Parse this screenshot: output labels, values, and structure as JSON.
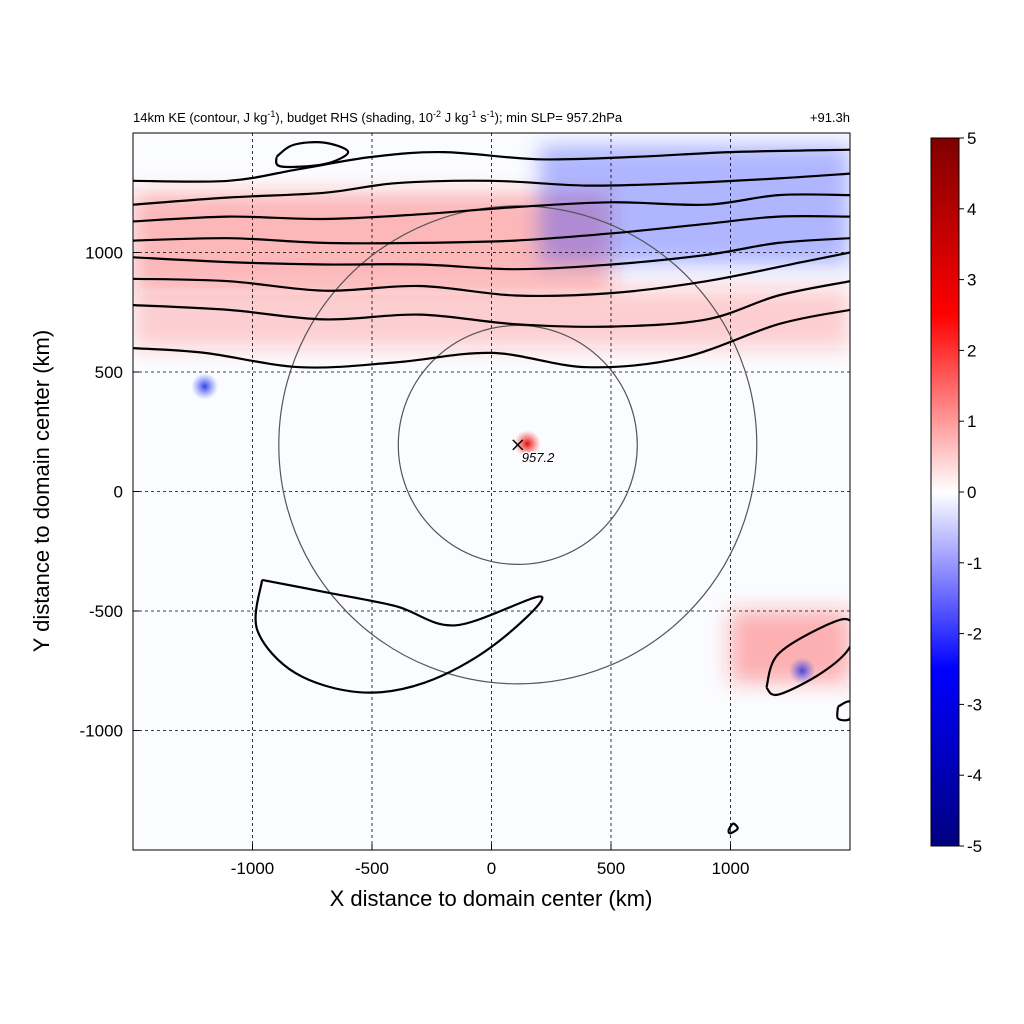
{
  "chart_data": {
    "type": "heatmap",
    "title": {
      "pre": "14km KE (contour, J kg",
      "sup1": "-1",
      "mid1": "), budget RHS (shading, 10",
      "sup2": "-2",
      "mid2": " J kg",
      "sup3": "-1",
      "mid3": " s",
      "sup4": "-1",
      "post": "); min SLP= 957.2hPa"
    },
    "time_label": "+91.3h",
    "xlabel": "X distance to domain center (km)",
    "ylabel": "Y distance to domain center (km)",
    "xlim": [
      -1500,
      1500
    ],
    "ylim": [
      -1500,
      1500
    ],
    "x_ticks": [
      -1000,
      -500,
      0,
      500,
      1000
    ],
    "y_ticks": [
      -1000,
      -500,
      0,
      500,
      1000
    ],
    "grid": true,
    "colorbar": {
      "min": -5,
      "max": 5,
      "ticks": [
        5,
        4,
        3,
        2,
        1,
        0,
        -1,
        -2,
        -3,
        -4,
        -5
      ],
      "colors": [
        "#00007f",
        "#0000ff",
        "#ffffff",
        "#ff0000",
        "#7f0000"
      ]
    },
    "storm_center": {
      "x": 110,
      "y": 195,
      "label": "957.2"
    },
    "range_circles_km": [
      500,
      1000
    ],
    "shading_regions": [
      {
        "shape": "band",
        "sign": "positive",
        "x": [
          -1500,
          500
        ],
        "y": [
          850,
          1250
        ],
        "intensity": 0.55
      },
      {
        "shape": "band",
        "sign": "negative",
        "x": [
          200,
          1500
        ],
        "y": [
          950,
          1450
        ],
        "intensity": 0.6
      },
      {
        "shape": "band",
        "sign": "positive",
        "x": [
          -1500,
          1500
        ],
        "y": [
          600,
          850
        ],
        "intensity": 0.35
      },
      {
        "shape": "blob",
        "sign": "positive",
        "x": 150,
        "y": 200,
        "intensity": 0.95
      },
      {
        "shape": "blob",
        "sign": "negative",
        "x": -1200,
        "y": 440,
        "intensity": 0.8
      },
      {
        "shape": "band",
        "sign": "positive",
        "x": [
          1000,
          1500
        ],
        "y": [
          -800,
          -500
        ],
        "intensity": 0.6
      },
      {
        "shape": "blob",
        "sign": "negative",
        "x": 1300,
        "y": -750,
        "intensity": 0.7
      }
    ],
    "ke_contours": [
      [
        [
          -1500,
          600
        ],
        [
          -1200,
          580
        ],
        [
          -800,
          520
        ],
        [
          -400,
          540
        ],
        [
          0,
          580
        ],
        [
          400,
          520
        ],
        [
          800,
          560
        ],
        [
          1200,
          700
        ],
        [
          1500,
          760
        ]
      ],
      [
        [
          -1500,
          780
        ],
        [
          -1100,
          760
        ],
        [
          -700,
          720
        ],
        [
          -300,
          740
        ],
        [
          100,
          700
        ],
        [
          500,
          690
        ],
        [
          900,
          720
        ],
        [
          1200,
          820
        ],
        [
          1500,
          880
        ]
      ],
      [
        [
          -1500,
          890
        ],
        [
          -1100,
          880
        ],
        [
          -700,
          840
        ],
        [
          -300,
          860
        ],
        [
          100,
          820
        ],
        [
          500,
          830
        ],
        [
          900,
          880
        ],
        [
          1300,
          960
        ],
        [
          1500,
          1000
        ]
      ],
      [
        [
          -1500,
          980
        ],
        [
          -1100,
          960
        ],
        [
          -700,
          950
        ],
        [
          -300,
          950
        ],
        [
          100,
          930
        ],
        [
          500,
          950
        ],
        [
          900,
          990
        ],
        [
          1200,
          1040
        ],
        [
          1500,
          1060
        ]
      ],
      [
        [
          -1500,
          1050
        ],
        [
          -1100,
          1060
        ],
        [
          -700,
          1040
        ],
        [
          -300,
          1040
        ],
        [
          100,
          1050
        ],
        [
          500,
          1080
        ],
        [
          900,
          1120
        ],
        [
          1200,
          1150
        ],
        [
          1500,
          1150
        ]
      ],
      [
        [
          -1500,
          1130
        ],
        [
          -1100,
          1150
        ],
        [
          -700,
          1140
        ],
        [
          -300,
          1160
        ],
        [
          100,
          1190
        ],
        [
          500,
          1210
        ],
        [
          900,
          1200
        ],
        [
          1200,
          1240
        ],
        [
          1500,
          1240
        ]
      ],
      [
        [
          -1500,
          1200
        ],
        [
          -1100,
          1230
        ],
        [
          -700,
          1250
        ],
        [
          -400,
          1290
        ],
        [
          0,
          1300
        ],
        [
          400,
          1280
        ],
        [
          800,
          1290
        ],
        [
          1200,
          1310
        ],
        [
          1500,
          1330
        ]
      ],
      [
        [
          -1500,
          1300
        ],
        [
          -1100,
          1300
        ],
        [
          -800,
          1350
        ],
        [
          -500,
          1400
        ],
        [
          -200,
          1420
        ],
        [
          200,
          1390
        ],
        [
          600,
          1400
        ],
        [
          1000,
          1420
        ],
        [
          1500,
          1430
        ]
      ],
      [
        [
          -900,
          1400
        ],
        [
          -830,
          1450
        ],
        [
          -700,
          1460
        ],
        [
          -600,
          1420
        ],
        [
          -700,
          1370
        ],
        [
          -880,
          1360
        ],
        [
          -900,
          1400
        ]
      ],
      [
        [
          -960,
          -370
        ],
        [
          -700,
          -420
        ],
        [
          -400,
          -480
        ],
        [
          -150,
          -560
        ],
        [
          210,
          -440
        ],
        [
          0,
          -650
        ],
        [
          -280,
          -800
        ],
        [
          -550,
          -840
        ],
        [
          -820,
          -760
        ],
        [
          -980,
          -580
        ],
        [
          -960,
          -370
        ]
      ],
      [
        [
          1150,
          -820
        ],
        [
          1200,
          -680
        ],
        [
          1400,
          -560
        ],
        [
          1500,
          -540
        ],
        [
          1500,
          -650
        ],
        [
          1380,
          -760
        ],
        [
          1200,
          -850
        ],
        [
          1150,
          -820
        ]
      ],
      [
        [
          1450,
          -900
        ],
        [
          1500,
          -880
        ],
        [
          1500,
          -950
        ],
        [
          1450,
          -950
        ],
        [
          1450,
          -900
        ]
      ],
      [
        [
          990,
          -1420
        ],
        [
          1010,
          -1390
        ],
        [
          1030,
          -1410
        ],
        [
          1000,
          -1430
        ],
        [
          990,
          -1420
        ]
      ]
    ]
  }
}
